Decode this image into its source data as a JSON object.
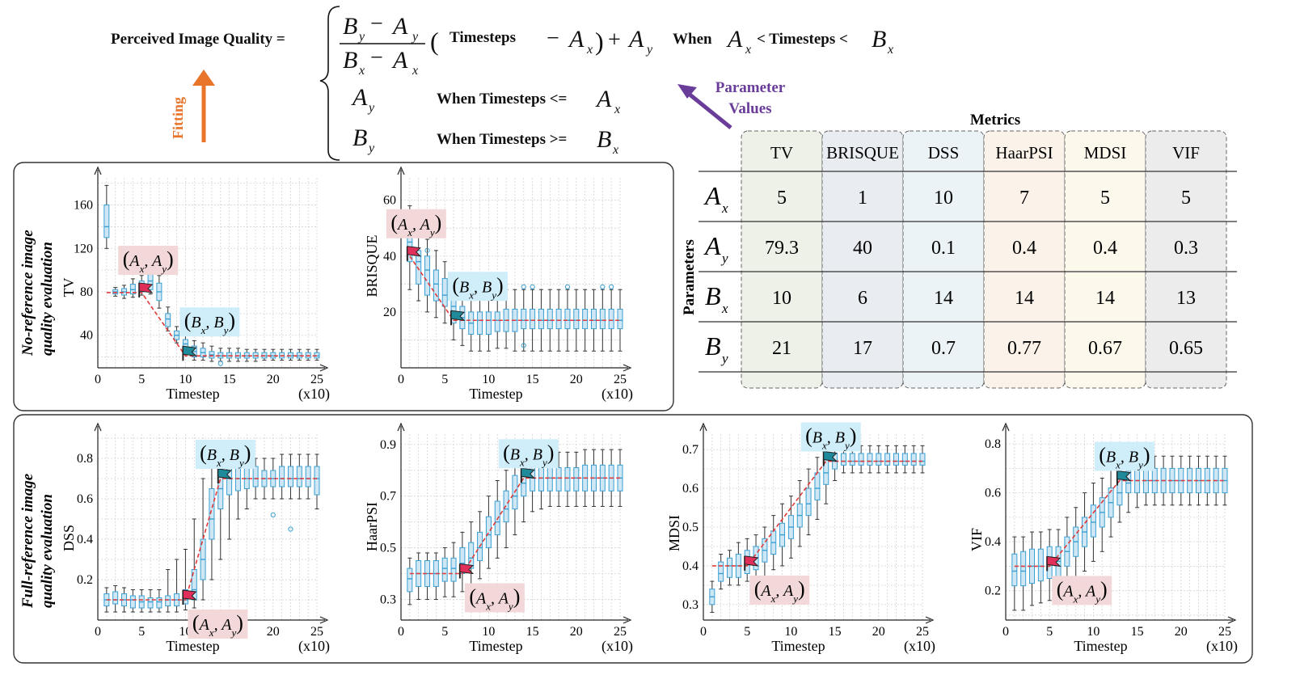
{
  "formula": {
    "lhs": "Perceived Image Quality =",
    "frac_num_B": "B",
    "frac_num_A": "A",
    "sub_y": "y",
    "sub_x": "x",
    "frac_minus": "−",
    "paren_open": "(",
    "paren_close": ")",
    "timesteps": "Timesteps",
    "plus": "+",
    "when": "When",
    "cond1": "< Timesteps <",
    "cond2": "When Timesteps <=",
    "cond3": "When Timesteps >="
  },
  "fitting_label": "Fitting",
  "param_values_label": [
    "Parameter",
    "Values"
  ],
  "table": {
    "title": "Metrics",
    "row_header": "Parameters",
    "columns": [
      "TV",
      "BRISQUE",
      "DSS",
      "HaarPSI",
      "MDSI",
      "VIF"
    ],
    "rows": [
      {
        "letter": "A",
        "sub": "x",
        "values": [
          "5",
          "1",
          "10",
          "7",
          "5",
          "5"
        ]
      },
      {
        "letter": "A",
        "sub": "y",
        "values": [
          "79.3",
          "40",
          "0.1",
          "0.4",
          "0.4",
          "0.3"
        ]
      },
      {
        "letter": "B",
        "sub": "x",
        "values": [
          "10",
          "6",
          "14",
          "14",
          "14",
          "13"
        ]
      },
      {
        "letter": "B",
        "sub": "y",
        "values": [
          "21",
          "17",
          "0.7",
          "0.77",
          "0.67",
          "0.65"
        ]
      }
    ],
    "column_tints": [
      "#eef1e8",
      "#e9edf2",
      "#ebf3f6",
      "#fbf3ea",
      "#fcf8ec",
      "#ececec"
    ]
  },
  "groups": [
    {
      "label": [
        "No-reference image",
        "quality evaluation"
      ]
    },
    {
      "label": [
        "Full-reference image",
        "quality evaluation"
      ]
    }
  ],
  "point_labels": {
    "A": "A",
    "B": "B",
    "x": "x",
    "y": "y",
    "comma": ","
  },
  "colors": {
    "box": "#3aa0d2",
    "boxfill": "#cfe6f5",
    "fit": "#e03a3a",
    "flagA": "#e0305a",
    "flagB": "#1f8a9a",
    "labelA": "#f2d8d8",
    "labelB": "#cfeefa",
    "arrow_orange": "#e8752a",
    "arrow_purple": "#6a3d9a"
  },
  "chart_data": [
    {
      "type": "box",
      "ylabel": "TV",
      "xlabel": "Timestep",
      "xunit": "(x10)",
      "xlim": [
        0,
        25
      ],
      "xticks": [
        0,
        5,
        10,
        15,
        20,
        25
      ],
      "ylim": [
        10,
        185
      ],
      "yticks": [
        40,
        80,
        120,
        160
      ],
      "Ax": 5,
      "Ay": 79.3,
      "Bx": 10,
      "By": 21,
      "medians": [
        140,
        80,
        80,
        82,
        85,
        90,
        80,
        55,
        40,
        32,
        25,
        24,
        22,
        21,
        21,
        21,
        21,
        21,
        21,
        21,
        21,
        21,
        21,
        21,
        21
      ],
      "q1": [
        130,
        78,
        77,
        78,
        80,
        82,
        72,
        48,
        36,
        28,
        20,
        20,
        19,
        19,
        19,
        19,
        19,
        19,
        19,
        19,
        19,
        19,
        19,
        19,
        19
      ],
      "q3": [
        160,
        82,
        83,
        87,
        90,
        96,
        88,
        60,
        44,
        36,
        30,
        28,
        25,
        24,
        24,
        24,
        24,
        24,
        24,
        24,
        24,
        24,
        24,
        24,
        24
      ],
      "wlo": [
        120,
        76,
        74,
        75,
        77,
        78,
        65,
        44,
        33,
        25,
        17,
        17,
        16,
        16,
        16,
        16,
        16,
        16,
        17,
        17,
        17,
        17,
        17,
        17,
        17
      ],
      "whi": [
        178,
        84,
        86,
        92,
        95,
        100,
        95,
        66,
        48,
        40,
        35,
        33,
        30,
        28,
        28,
        28,
        27,
        27,
        27,
        27,
        27,
        27,
        27,
        27,
        27
      ],
      "outliers": [
        [
          14,
          14
        ]
      ]
    },
    {
      "type": "box",
      "ylabel": "BRISQUE",
      "xlabel": "Timestep",
      "xunit": "(x10)",
      "xlim": [
        0,
        25
      ],
      "xticks": [
        0,
        5,
        10,
        15,
        20,
        25
      ],
      "ylim": [
        0,
        68
      ],
      "yticks": [
        20,
        40,
        60
      ],
      "Ax": 1,
      "Ay": 40,
      "Bx": 6,
      "By": 17,
      "medians": [
        45,
        38,
        35,
        30,
        26,
        22,
        18,
        16,
        17,
        17,
        17,
        17,
        17,
        17,
        17,
        17,
        17,
        17,
        17,
        17,
        17,
        17,
        17,
        17,
        17
      ],
      "q1": [
        38,
        30,
        26,
        24,
        22,
        16,
        14,
        12,
        12,
        12,
        13,
        13,
        13,
        14,
        14,
        14,
        14,
        14,
        14,
        14,
        14,
        14,
        14,
        14,
        14
      ],
      "q3": [
        50,
        42,
        40,
        35,
        32,
        26,
        22,
        20,
        20,
        20,
        20,
        21,
        21,
        21,
        21,
        21,
        21,
        21,
        21,
        21,
        21,
        21,
        21,
        21,
        21
      ],
      "wlo": [
        28,
        24,
        20,
        18,
        16,
        10,
        8,
        6,
        6,
        6,
        7,
        7,
        6,
        6,
        6,
        6,
        6,
        6,
        6,
        6,
        6,
        6,
        6,
        6,
        6
      ],
      "whi": [
        58,
        48,
        46,
        42,
        38,
        34,
        30,
        28,
        28,
        28,
        28,
        28,
        28,
        28,
        28,
        28,
        28,
        28,
        28,
        28,
        28,
        28,
        28,
        28,
        28
      ],
      "outliers": [
        [
          3,
          42
        ],
        [
          14,
          29
        ],
        [
          14,
          8
        ],
        [
          15,
          29
        ],
        [
          19,
          29
        ],
        [
          23,
          29
        ],
        [
          24,
          29
        ]
      ]
    },
    {
      "type": "box",
      "ylabel": "DSS",
      "xlabel": "Timestep",
      "xunit": "(x10)",
      "xlim": [
        0,
        25
      ],
      "xticks": [
        0,
        5,
        10,
        15,
        20,
        25
      ],
      "ylim": [
        0,
        0.92
      ],
      "yticks": [
        0.2,
        0.4,
        0.6,
        0.8
      ],
      "Ax": 10,
      "Ay": 0.1,
      "Bx": 14,
      "By": 0.7,
      "medians": [
        0.1,
        0.1,
        0.1,
        0.1,
        0.09,
        0.09,
        0.09,
        0.1,
        0.1,
        0.1,
        0.15,
        0.3,
        0.5,
        0.65,
        0.7,
        0.7,
        0.7,
        0.7,
        0.7,
        0.7,
        0.7,
        0.7,
        0.7,
        0.7,
        0.7
      ],
      "q1": [
        0.07,
        0.08,
        0.07,
        0.06,
        0.06,
        0.06,
        0.06,
        0.07,
        0.07,
        0.08,
        0.1,
        0.2,
        0.4,
        0.55,
        0.62,
        0.64,
        0.65,
        0.66,
        0.66,
        0.66,
        0.66,
        0.66,
        0.66,
        0.66,
        0.62
      ],
      "q3": [
        0.13,
        0.14,
        0.13,
        0.12,
        0.12,
        0.11,
        0.11,
        0.12,
        0.13,
        0.15,
        0.25,
        0.4,
        0.65,
        0.78,
        0.78,
        0.78,
        0.76,
        0.76,
        0.74,
        0.74,
        0.76,
        0.76,
        0.76,
        0.76,
        0.76
      ],
      "wlo": [
        0.04,
        0.04,
        0.04,
        0.04,
        0.04,
        0.04,
        0.04,
        0.04,
        0.04,
        0.05,
        0.06,
        0.1,
        0.2,
        0.3,
        0.4,
        0.5,
        0.55,
        0.6,
        0.6,
        0.6,
        0.6,
        0.6,
        0.6,
        0.6,
        0.55
      ],
      "whi": [
        0.16,
        0.17,
        0.16,
        0.15,
        0.15,
        0.15,
        0.15,
        0.25,
        0.3,
        0.35,
        0.5,
        0.7,
        0.8,
        0.85,
        0.85,
        0.82,
        0.82,
        0.8,
        0.8,
        0.8,
        0.82,
        0.82,
        0.82,
        0.82,
        0.82
      ],
      "outliers": [
        [
          20,
          0.52
        ],
        [
          22,
          0.45
        ]
      ]
    },
    {
      "type": "box",
      "ylabel": "HaarPSI",
      "xlabel": "Timestep",
      "xunit": "(x10)",
      "xlim": [
        0,
        25
      ],
      "xticks": [
        0,
        5,
        10,
        15,
        20,
        25
      ],
      "ylim": [
        0.22,
        0.94
      ],
      "yticks": [
        0.3,
        0.5,
        0.7,
        0.9
      ],
      "Ax": 7,
      "Ay": 0.4,
      "Bx": 14,
      "By": 0.77,
      "medians": [
        0.38,
        0.4,
        0.4,
        0.4,
        0.42,
        0.42,
        0.44,
        0.46,
        0.5,
        0.55,
        0.6,
        0.65,
        0.7,
        0.75,
        0.77,
        0.77,
        0.77,
        0.77,
        0.77,
        0.77,
        0.77,
        0.77,
        0.77,
        0.77,
        0.77
      ],
      "q1": [
        0.33,
        0.35,
        0.35,
        0.35,
        0.37,
        0.37,
        0.4,
        0.42,
        0.45,
        0.5,
        0.55,
        0.6,
        0.65,
        0.7,
        0.72,
        0.72,
        0.72,
        0.72,
        0.72,
        0.72,
        0.72,
        0.72,
        0.72,
        0.72,
        0.72
      ],
      "q3": [
        0.42,
        0.45,
        0.45,
        0.45,
        0.46,
        0.46,
        0.5,
        0.52,
        0.56,
        0.62,
        0.68,
        0.72,
        0.78,
        0.8,
        0.82,
        0.82,
        0.81,
        0.81,
        0.81,
        0.81,
        0.82,
        0.82,
        0.82,
        0.82,
        0.82
      ],
      "wlo": [
        0.28,
        0.3,
        0.3,
        0.3,
        0.31,
        0.31,
        0.33,
        0.35,
        0.38,
        0.42,
        0.46,
        0.5,
        0.55,
        0.6,
        0.64,
        0.65,
        0.66,
        0.66,
        0.66,
        0.66,
        0.66,
        0.66,
        0.66,
        0.66,
        0.66
      ],
      "whi": [
        0.46,
        0.48,
        0.48,
        0.48,
        0.5,
        0.52,
        0.56,
        0.6,
        0.64,
        0.7,
        0.76,
        0.8,
        0.84,
        0.86,
        0.88,
        0.88,
        0.87,
        0.87,
        0.87,
        0.87,
        0.88,
        0.88,
        0.88,
        0.88,
        0.88
      ],
      "outliers": [
        [
          13,
          0.85
        ]
      ]
    },
    {
      "type": "box",
      "ylabel": "MDSI",
      "xlabel": "Timestep",
      "xunit": "(x10)",
      "xlim": [
        0,
        25
      ],
      "xticks": [
        0,
        5,
        10,
        15,
        20,
        25
      ],
      "ylim": [
        0.26,
        0.74
      ],
      "yticks": [
        0.3,
        0.4,
        0.5,
        0.6,
        0.7
      ],
      "Ax": 5,
      "Ay": 0.4,
      "Bx": 14,
      "By": 0.67,
      "medians": [
        0.32,
        0.38,
        0.4,
        0.4,
        0.41,
        0.42,
        0.44,
        0.46,
        0.48,
        0.5,
        0.53,
        0.56,
        0.6,
        0.64,
        0.67,
        0.67,
        0.67,
        0.67,
        0.67,
        0.67,
        0.67,
        0.67,
        0.67,
        0.67,
        0.67
      ],
      "q1": [
        0.3,
        0.36,
        0.37,
        0.37,
        0.38,
        0.39,
        0.41,
        0.43,
        0.45,
        0.47,
        0.5,
        0.53,
        0.57,
        0.61,
        0.65,
        0.66,
        0.66,
        0.66,
        0.66,
        0.66,
        0.66,
        0.66,
        0.66,
        0.66,
        0.66
      ],
      "q3": [
        0.34,
        0.41,
        0.42,
        0.43,
        0.44,
        0.45,
        0.47,
        0.49,
        0.51,
        0.53,
        0.56,
        0.6,
        0.64,
        0.68,
        0.69,
        0.69,
        0.69,
        0.69,
        0.69,
        0.69,
        0.69,
        0.69,
        0.69,
        0.69,
        0.69
      ],
      "wlo": [
        0.28,
        0.34,
        0.35,
        0.35,
        0.36,
        0.36,
        0.37,
        0.39,
        0.4,
        0.42,
        0.45,
        0.48,
        0.52,
        0.56,
        0.62,
        0.64,
        0.64,
        0.64,
        0.64,
        0.64,
        0.64,
        0.64,
        0.64,
        0.64,
        0.64
      ],
      "whi": [
        0.36,
        0.43,
        0.44,
        0.46,
        0.47,
        0.48,
        0.5,
        0.53,
        0.56,
        0.58,
        0.62,
        0.65,
        0.68,
        0.7,
        0.71,
        0.71,
        0.71,
        0.71,
        0.71,
        0.71,
        0.71,
        0.71,
        0.71,
        0.71,
        0.71
      ],
      "outliers": []
    },
    {
      "type": "box",
      "ylabel": "VIF",
      "xlabel": "Timestep",
      "xunit": "(x10)",
      "xlim": [
        0,
        25
      ],
      "xticks": [
        0,
        5,
        10,
        15,
        20,
        25
      ],
      "ylim": [
        0.08,
        0.84
      ],
      "yticks": [
        0.2,
        0.4,
        0.6,
        0.8
      ],
      "Ax": 5,
      "Ay": 0.3,
      "Bx": 13,
      "By": 0.65,
      "medians": [
        0.28,
        0.28,
        0.3,
        0.3,
        0.32,
        0.32,
        0.36,
        0.4,
        0.44,
        0.48,
        0.52,
        0.56,
        0.6,
        0.64,
        0.65,
        0.65,
        0.65,
        0.65,
        0.65,
        0.65,
        0.65,
        0.65,
        0.65,
        0.65,
        0.65
      ],
      "q1": [
        0.22,
        0.22,
        0.23,
        0.24,
        0.25,
        0.25,
        0.3,
        0.34,
        0.38,
        0.42,
        0.46,
        0.5,
        0.55,
        0.6,
        0.6,
        0.6,
        0.6,
        0.6,
        0.6,
        0.6,
        0.6,
        0.6,
        0.6,
        0.6,
        0.6
      ],
      "q3": [
        0.35,
        0.36,
        0.37,
        0.37,
        0.38,
        0.38,
        0.42,
        0.46,
        0.5,
        0.55,
        0.58,
        0.62,
        0.66,
        0.69,
        0.7,
        0.7,
        0.7,
        0.7,
        0.7,
        0.7,
        0.7,
        0.7,
        0.7,
        0.7,
        0.7
      ],
      "wlo": [
        0.12,
        0.12,
        0.14,
        0.15,
        0.16,
        0.16,
        0.2,
        0.24,
        0.28,
        0.32,
        0.36,
        0.42,
        0.48,
        0.52,
        0.54,
        0.55,
        0.55,
        0.55,
        0.55,
        0.55,
        0.55,
        0.55,
        0.55,
        0.55,
        0.55
      ],
      "whi": [
        0.42,
        0.42,
        0.44,
        0.44,
        0.45,
        0.45,
        0.5,
        0.54,
        0.6,
        0.64,
        0.66,
        0.7,
        0.72,
        0.74,
        0.75,
        0.75,
        0.75,
        0.75,
        0.75,
        0.75,
        0.75,
        0.75,
        0.75,
        0.75,
        0.75
      ],
      "outliers": []
    }
  ]
}
